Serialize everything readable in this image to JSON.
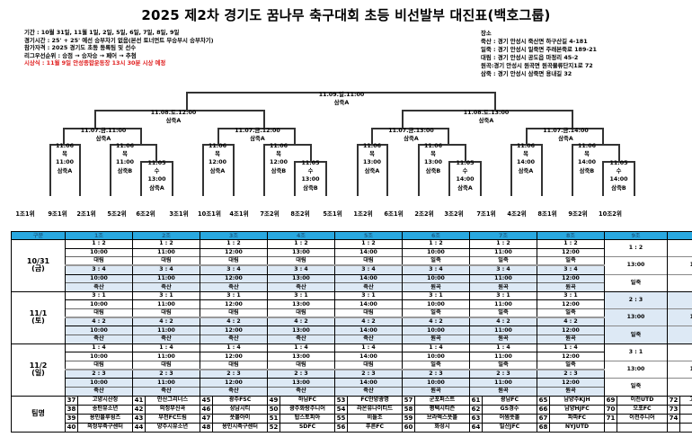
{
  "title": "2025 제2차 경기도 꿈나무 축구대회 초등 비선발부 대진표(백호그룹)",
  "info": {
    "lines": [
      "기간 : 10월 31일, 11월 1일, 2일, 5일, 6일, 7일, 8일, 9일",
      "경기시간 : 25' + 25' 예선 승부차기 없음(본선 토너먼트 무승부시 승부차기)",
      "참가자격 : 2025 경기도 초등 등록팀 및 선수",
      "리그우선순위 : 승점 → 승자승 → 페어 → 추첨"
    ],
    "notice": "시상식 : 11월 9일 안성종합운동장 13시 30분 시상 예정",
    "notice_color": "#e02020"
  },
  "venues": {
    "heading": "장소",
    "lines": [
      "죽산 : 경기 안성시 죽산면 하구산길 4-181",
      "일죽 : 경기 안성시 일죽면 주래본죽로 189-21",
      "대림 : 경기 안성시 공도읍 마정리 45-2",
      "원곡:경기 안성시 원곡면 원곡물류단지1로 72",
      "삼죽 : 경기 안성시 삼죽면 용내길 32"
    ]
  },
  "bracket": {
    "final": {
      "date": "11.09.일.11:00",
      "venue": "삼죽A"
    },
    "semis": [
      {
        "date": "11.08.토.12:00",
        "venue": "삼죽A"
      },
      {
        "date": "11.08.토.13:00",
        "venue": "삼죽A"
      }
    ],
    "quarters": [
      {
        "date": "11.07.금.11:00",
        "venue": "삼죽A"
      },
      {
        "date": "11.07.금.12:00",
        "venue": "삼죽A"
      },
      {
        "date": "11.07.금.13:00",
        "venue": "삼죽A"
      },
      {
        "date": "11.07.금.14:00",
        "venue": "삼죽A"
      }
    ],
    "r16": [
      {
        "date": "11.06",
        "day": "목",
        "time": "11:00",
        "venue": "삼죽A"
      },
      {
        "date": "11.06",
        "day": "목",
        "time": "11:00",
        "venue": "삼죽B"
      },
      {
        "date": "11.06",
        "day": "목",
        "time": "12:00",
        "venue": "삼죽A"
      },
      {
        "date": "11.06",
        "day": "목",
        "time": "12:00",
        "venue": "삼죽B"
      },
      {
        "date": "11.06",
        "day": "목",
        "time": "13:00",
        "venue": "삼죽A"
      },
      {
        "date": "11.06",
        "day": "목",
        "time": "13:00",
        "venue": "삼죽B"
      },
      {
        "date": "11.06",
        "day": "목",
        "time": "14:00",
        "venue": "삼죽A"
      },
      {
        "date": "11.06",
        "day": "목",
        "time": "14:00",
        "venue": "삼죽B"
      }
    ],
    "playins": [
      {
        "date": "11.05",
        "day": "수",
        "time": "13:00",
        "venue": "삼죽A"
      },
      {
        "date": "11.05",
        "day": "수",
        "time": "13:00",
        "venue": "삼죽B"
      },
      {
        "date": "11.05",
        "day": "수",
        "time": "14:00",
        "venue": "삼죽A"
      },
      {
        "date": "11.05",
        "day": "수",
        "time": "14:00",
        "venue": "삼죽B"
      }
    ],
    "seeds": [
      "1조1위",
      "9조1위",
      "2조1위",
      "5조2위",
      "6조2위",
      "3조1위",
      "10조1위",
      "4조1위",
      "7조2위",
      "8조2위",
      "5조1위",
      "1조2위",
      "6조1위",
      "2조2위",
      "3조2위",
      "7조1위",
      "4조2위",
      "8조1위",
      "9조2위",
      "10조2위"
    ]
  },
  "schedule": {
    "header": [
      "구분",
      "1조",
      "2조",
      "3조",
      "4조",
      "5조",
      "6조",
      "7조",
      "8조",
      "9조",
      "10조"
    ],
    "days": [
      {
        "label": "10/31",
        "weekday": "(금)",
        "groups": [
          {
            "m1": "1 : 2",
            "t1": "10:00",
            "v1": "대림",
            "m2": "3 : 4",
            "t2": "10:00",
            "v2": "죽산"
          },
          {
            "m1": "1 : 2",
            "t1": "11:00",
            "v1": "대림",
            "m2": "3 : 4",
            "t2": "11:00",
            "v2": "죽산"
          },
          {
            "m1": "1 : 2",
            "t1": "12:00",
            "v1": "대림",
            "m2": "3 : 4",
            "t2": "12:00",
            "v2": "죽산"
          },
          {
            "m1": "1 : 2",
            "t1": "13:00",
            "v1": "대림",
            "m2": "3 : 4",
            "t2": "13:00",
            "v2": "죽산"
          },
          {
            "m1": "1 : 2",
            "t1": "14:00",
            "v1": "대림",
            "m2": "3 : 4",
            "t2": "14:00",
            "v2": "죽산"
          },
          {
            "m1": "1 : 2",
            "t1": "10:00",
            "v1": "일죽",
            "m2": "3 : 4",
            "t2": "10:00",
            "v2": "원곡"
          },
          {
            "m1": "1 : 2",
            "t1": "11:00",
            "v1": "일죽",
            "m2": "3 : 4",
            "t2": "11:00",
            "v2": "원곡"
          },
          {
            "m1": "1 : 2",
            "t1": "12:00",
            "v1": "일죽",
            "m2": "3 : 4",
            "t2": "12:00",
            "v2": "원곡"
          }
        ],
        "small": [
          {
            "m": "1 : 2",
            "t": "13:00",
            "v": "일죽"
          },
          {
            "m": "1 : 2",
            "t": "13:00",
            "v": "원곡"
          }
        ]
      },
      {
        "label": "11/1",
        "weekday": "(토)",
        "groups": [
          {
            "m1": "3 : 1",
            "t1": "10:00",
            "v1": "대림",
            "m2": "4 : 2",
            "t2": "10:00",
            "v2": "죽산"
          },
          {
            "m1": "3 : 1",
            "t1": "11:00",
            "v1": "대림",
            "m2": "4 : 2",
            "t2": "11:00",
            "v2": "죽산"
          },
          {
            "m1": "3 : 1",
            "t1": "12:00",
            "v1": "대림",
            "m2": "4 : 2",
            "t2": "12:00",
            "v2": "죽산"
          },
          {
            "m1": "3 : 1",
            "t1": "13:00",
            "v1": "대림",
            "m2": "4 : 2",
            "t2": "13:00",
            "v2": "죽산"
          },
          {
            "m1": "3 : 1",
            "t1": "14:00",
            "v1": "대림",
            "m2": "4 : 2",
            "t2": "14:00",
            "v2": "죽산"
          },
          {
            "m1": "3 : 1",
            "t1": "10:00",
            "v1": "일죽",
            "m2": "4 : 2",
            "t2": "10:00",
            "v2": "원곡"
          },
          {
            "m1": "3 : 1",
            "t1": "11:00",
            "v1": "일죽",
            "m2": "4 : 2",
            "t2": "11:00",
            "v2": "원곡"
          },
          {
            "m1": "3 : 1",
            "t1": "12:00",
            "v1": "일죽",
            "m2": "4 : 2",
            "t2": "12:00",
            "v2": "원곡"
          }
        ],
        "small": [
          {
            "m": "2 : 3",
            "t": "13:00",
            "v": "일죽"
          },
          {
            "m": "2 : 3",
            "t": "13:00",
            "v": "원곡"
          }
        ]
      },
      {
        "label": "11/2",
        "weekday": "(일)",
        "groups": [
          {
            "m1": "1 : 4",
            "t1": "10:00",
            "v1": "대림",
            "m2": "2 : 3",
            "t2": "10:00",
            "v2": "죽산"
          },
          {
            "m1": "1 : 4",
            "t1": "11:00",
            "v1": "대림",
            "m2": "2 : 3",
            "t2": "11:00",
            "v2": "죽산"
          },
          {
            "m1": "1 : 4",
            "t1": "12:00",
            "v1": "대림",
            "m2": "2 : 3",
            "t2": "12:00",
            "v2": "죽산"
          },
          {
            "m1": "1 : 4",
            "t1": "13:00",
            "v1": "대림",
            "m2": "2 : 3",
            "t2": "13:00",
            "v2": "죽산"
          },
          {
            "m1": "1 : 4",
            "t1": "14:00",
            "v1": "대림",
            "m2": "2 : 3",
            "t2": "14:00",
            "v2": "죽산"
          },
          {
            "m1": "1 : 4",
            "t1": "10:00",
            "v1": "일죽",
            "m2": "2 : 3",
            "t2": "10:00",
            "v2": "원곡"
          },
          {
            "m1": "1 : 4",
            "t1": "11:00",
            "v1": "일죽",
            "m2": "2 : 3",
            "t2": "11:00",
            "v2": "원곡"
          },
          {
            "m1": "1 : 4",
            "t1": "12:00",
            "v1": "일죽",
            "m2": "2 : 3",
            "t2": "12:00",
            "v2": "원곡"
          }
        ],
        "small": [
          {
            "m": "3 : 1",
            "t": "13:00",
            "v": "일죽"
          },
          {
            "m": "3 : 1",
            "t": "13:00",
            "v": "원곡"
          }
        ]
      }
    ],
    "teams_label": "팀명",
    "teams": [
      [
        {
          "n": "37",
          "name": "고양시산정"
        },
        {
          "n": "38",
          "name": "송탄유소년"
        },
        {
          "n": "39",
          "name": "용인블루윙즈"
        },
        {
          "n": "40",
          "name": "의정부축구센터"
        }
      ],
      [
        {
          "n": "41",
          "name": "안산그리너스"
        },
        {
          "n": "42",
          "name": "의정부신곡"
        },
        {
          "n": "43",
          "name": "부천FC드림"
        },
        {
          "n": "44",
          "name": "양주시유소년"
        }
      ],
      [
        {
          "n": "45",
          "name": "광주FSC"
        },
        {
          "n": "46",
          "name": "성남시티"
        },
        {
          "n": "47",
          "name": "풋볼아이"
        },
        {
          "n": "48",
          "name": "용인시축구센터"
        }
      ],
      [
        {
          "n": "49",
          "name": "하남FC"
        },
        {
          "n": "50",
          "name": "광주화랑주니어"
        },
        {
          "n": "51",
          "name": "탑스토피아"
        },
        {
          "n": "52",
          "name": "SDFC"
        }
      ],
      [
        {
          "n": "53",
          "name": "FC안양광명"
        },
        {
          "n": "54",
          "name": "라온유나이티드"
        },
        {
          "n": "55",
          "name": "비들조"
        },
        {
          "n": "56",
          "name": "푸른FC"
        }
      ],
      [
        {
          "n": "57",
          "name": "군포퍼스트"
        },
        {
          "n": "58",
          "name": "평택시티즌"
        },
        {
          "n": "59",
          "name": "브라엑스풋볼"
        },
        {
          "n": "60",
          "name": "화성시"
        }
      ],
      [
        {
          "n": "61",
          "name": "광남FC"
        },
        {
          "n": "62",
          "name": "GS경수"
        },
        {
          "n": "63",
          "name": "어썸풋볼"
        },
        {
          "n": "64",
          "name": "일산JFC"
        }
      ],
      [
        {
          "n": "65",
          "name": "남양주KJH"
        },
        {
          "n": "66",
          "name": "남양HJFC"
        },
        {
          "n": "67",
          "name": "파파FC"
        },
        {
          "n": "68",
          "name": "NYJUTD"
        }
      ],
      [
        {
          "n": "69",
          "name": "이천UTD"
        },
        {
          "n": "70",
          "name": "오포FC"
        },
        {
          "n": "71",
          "name": "이천주니어"
        },
        {
          "n": "",
          "name": ""
        }
      ],
      [
        {
          "n": "72",
          "name": "고양무원풋볼"
        },
        {
          "n": "73",
          "name": "광명FC"
        },
        {
          "n": "74",
          "name": "김신욱FC"
        },
        {
          "n": "",
          "name": ""
        }
      ]
    ]
  },
  "colors": {
    "header_bg": "#29a8e0",
    "row_alt_bg": "#dde9f5",
    "notice": "#e02020"
  }
}
